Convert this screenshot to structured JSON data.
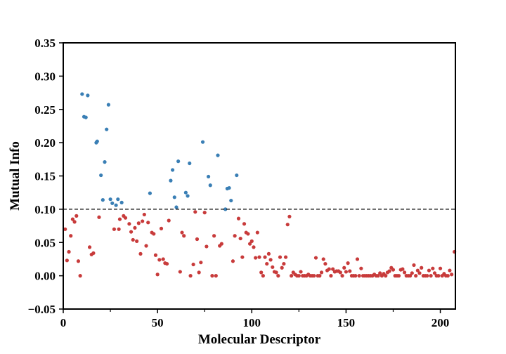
{
  "chart_data": {
    "type": "scatter",
    "title": "",
    "xlabel": "Molecular Descriptor",
    "ylabel": "Mutual Info",
    "xlim": [
      0,
      208
    ],
    "ylim": [
      -0.05,
      0.35
    ],
    "x_ticks": [
      0,
      50,
      100,
      150,
      200
    ],
    "x_minor_ticks": [
      25,
      75,
      125,
      175
    ],
    "y_ticks": [
      -0.05,
      0.0,
      0.05,
      0.1,
      0.15,
      0.2,
      0.25,
      0.3,
      0.35
    ],
    "y_tick_labels": [
      "−0.05",
      "0.00",
      "0.05",
      "0.10",
      "0.15",
      "0.20",
      "0.25",
      "0.30",
      "0.35"
    ],
    "x_tick_labels": [
      "0",
      "50",
      "100",
      "150",
      "200"
    ],
    "threshold": {
      "y": 0.1,
      "style": "dashed",
      "color": "#000000"
    },
    "grid": false,
    "legend": "none",
    "colors": {
      "above": "#3a7fb5",
      "below": "#c83b3b"
    },
    "series": [
      {
        "color": "#3a7fb5",
        "points": [
          [
            10,
            0.273
          ],
          [
            11,
            0.239
          ],
          [
            12,
            0.238
          ],
          [
            13,
            0.271
          ],
          [
            17.5,
            0.2
          ],
          [
            18,
            0.202
          ],
          [
            20,
            0.151
          ],
          [
            21,
            0.114
          ],
          [
            22,
            0.171
          ],
          [
            23,
            0.22
          ],
          [
            24,
            0.257
          ],
          [
            25,
            0.115
          ],
          [
            26,
            0.109
          ],
          [
            28,
            0.106
          ],
          [
            29,
            0.115
          ],
          [
            31,
            0.11
          ],
          [
            46,
            0.124
          ],
          [
            57,
            0.143
          ],
          [
            58,
            0.159
          ],
          [
            59,
            0.118
          ],
          [
            60,
            0.103
          ],
          [
            61,
            0.172
          ],
          [
            65,
            0.125
          ],
          [
            66,
            0.12
          ],
          [
            67,
            0.169
          ],
          [
            74,
            0.201
          ],
          [
            77,
            0.149
          ],
          [
            78,
            0.136
          ],
          [
            82,
            0.181
          ],
          [
            86,
            0.1
          ],
          [
            87,
            0.131
          ],
          [
            88,
            0.132
          ],
          [
            89,
            0.113
          ],
          [
            92,
            0.151
          ]
        ]
      },
      {
        "color": "#c83b3b",
        "points": [
          [
            1,
            0.07
          ],
          [
            2,
            0.023
          ],
          [
            3,
            0.036
          ],
          [
            4,
            0.06
          ],
          [
            5,
            0.085
          ],
          [
            6,
            0.081
          ],
          [
            7,
            0.09
          ],
          [
            8,
            0.022
          ],
          [
            9,
            0.0
          ],
          [
            14,
            0.043
          ],
          [
            15,
            0.032
          ],
          [
            16,
            0.034
          ],
          [
            19,
            0.088
          ],
          [
            27,
            0.07
          ],
          [
            29.5,
            0.07
          ],
          [
            30,
            0.085
          ],
          [
            32,
            0.09
          ],
          [
            33,
            0.087
          ],
          [
            35,
            0.078
          ],
          [
            36,
            0.066
          ],
          [
            37,
            0.054
          ],
          [
            38,
            0.072
          ],
          [
            39,
            0.052
          ],
          [
            40,
            0.079
          ],
          [
            41,
            0.033
          ],
          [
            42,
            0.082
          ],
          [
            43,
            0.092
          ],
          [
            44,
            0.045
          ],
          [
            45,
            0.08
          ],
          [
            47,
            0.065
          ],
          [
            48,
            0.063
          ],
          [
            49,
            0.031
          ],
          [
            50,
            0.002
          ],
          [
            51,
            0.024
          ],
          [
            52,
            0.071
          ],
          [
            53,
            0.025
          ],
          [
            54,
            0.019
          ],
          [
            55,
            0.018
          ],
          [
            56,
            0.083
          ],
          [
            62,
            0.006
          ],
          [
            63,
            0.065
          ],
          [
            64,
            0.06
          ],
          [
            67.5,
            0.0
          ],
          [
            69,
            0.017
          ],
          [
            70,
            0.096
          ],
          [
            71,
            0.055
          ],
          [
            72,
            0.005
          ],
          [
            73,
            0.02
          ],
          [
            75,
            0.095
          ],
          [
            76,
            0.044
          ],
          [
            79,
            0.0
          ],
          [
            80,
            0.06
          ],
          [
            81,
            0.0
          ],
          [
            83,
            0.045
          ],
          [
            84,
            0.048
          ],
          [
            90,
            0.022
          ],
          [
            91,
            0.06
          ],
          [
            93,
            0.086
          ],
          [
            94,
            0.056
          ],
          [
            95,
            0.028
          ],
          [
            96,
            0.078
          ],
          [
            97,
            0.065
          ],
          [
            98,
            0.063
          ],
          [
            99,
            0.048
          ],
          [
            100,
            0.052
          ],
          [
            101,
            0.043
          ],
          [
            102,
            0.027
          ],
          [
            103,
            0.065
          ],
          [
            104,
            0.028
          ],
          [
            105,
            0.005
          ],
          [
            106,
            0.0
          ],
          [
            107,
            0.028
          ],
          [
            108,
            0.018
          ],
          [
            109,
            0.033
          ],
          [
            110,
            0.024
          ],
          [
            111,
            0.013
          ],
          [
            112,
            0.006
          ],
          [
            113,
            0.005
          ],
          [
            114,
            0.0
          ],
          [
            115,
            0.028
          ],
          [
            116,
            0.012
          ],
          [
            117,
            0.018
          ],
          [
            118,
            0.028
          ],
          [
            119,
            0.077
          ],
          [
            120,
            0.089
          ],
          [
            121,
            0.0
          ],
          [
            122,
            0.005
          ],
          [
            123,
            0.002
          ],
          [
            124,
            0.0
          ],
          [
            125,
            0.0
          ],
          [
            126,
            0.006
          ],
          [
            127,
            0.0
          ],
          [
            128,
            0.0
          ],
          [
            129,
            0.0
          ],
          [
            130,
            0.002
          ],
          [
            131,
            0.0
          ],
          [
            132,
            0.0
          ],
          [
            133,
            0.0
          ],
          [
            134,
            0.027
          ],
          [
            135,
            0.0
          ],
          [
            136,
            0.0
          ],
          [
            137,
            0.005
          ],
          [
            138,
            0.025
          ],
          [
            139,
            0.018
          ],
          [
            140,
            0.008
          ],
          [
            141,
            0.01
          ],
          [
            142,
            0.0
          ],
          [
            143,
            0.01
          ],
          [
            144,
            0.006
          ],
          [
            145,
            0.007
          ],
          [
            146,
            0.007
          ],
          [
            147,
            0.005
          ],
          [
            148,
            0.0
          ],
          [
            149,
            0.012
          ],
          [
            150,
            0.006
          ],
          [
            151,
            0.019
          ],
          [
            152,
            0.007
          ],
          [
            153,
            0.0
          ],
          [
            154,
            0.0
          ],
          [
            155,
            0.0
          ],
          [
            156,
            0.025
          ],
          [
            157,
            0.0
          ],
          [
            158,
            0.011
          ],
          [
            159,
            0.0
          ],
          [
            160,
            0.0
          ],
          [
            161,
            0.0
          ],
          [
            162,
            0.0
          ],
          [
            163,
            0.0
          ],
          [
            164,
            0.0
          ],
          [
            165,
            0.002
          ],
          [
            166,
            0.0
          ],
          [
            167,
            0.0
          ],
          [
            168,
            0.004
          ],
          [
            169,
            0.0
          ],
          [
            170,
            0.003
          ],
          [
            171,
            0.0
          ],
          [
            172,
            0.005
          ],
          [
            173,
            0.007
          ],
          [
            174,
            0.012
          ],
          [
            175,
            0.009
          ],
          [
            176,
            0.0
          ],
          [
            177,
            0.0
          ],
          [
            178,
            0.0
          ],
          [
            179,
            0.009
          ],
          [
            180,
            0.01
          ],
          [
            181,
            0.005
          ],
          [
            182,
            0.0
          ],
          [
            183,
            0.0
          ],
          [
            184,
            0.0
          ],
          [
            185,
            0.004
          ],
          [
            186,
            0.016
          ],
          [
            187,
            0.0
          ],
          [
            188,
            0.008
          ],
          [
            189,
            0.004
          ],
          [
            190,
            0.012
          ],
          [
            191,
            0.0
          ],
          [
            192,
            0.0
          ],
          [
            193,
            0.0
          ],
          [
            194,
            0.008
          ],
          [
            195,
            0.0
          ],
          [
            196,
            0.011
          ],
          [
            197,
            0.004
          ],
          [
            198,
            0.0
          ],
          [
            199,
            0.0
          ],
          [
            200,
            0.011
          ],
          [
            201,
            0.0
          ],
          [
            202,
            0.003
          ],
          [
            203,
            0.0
          ],
          [
            204,
            0.0
          ],
          [
            205,
            0.008
          ],
          [
            206,
            0.002
          ],
          [
            207.5,
            0.036
          ]
        ]
      }
    ]
  }
}
